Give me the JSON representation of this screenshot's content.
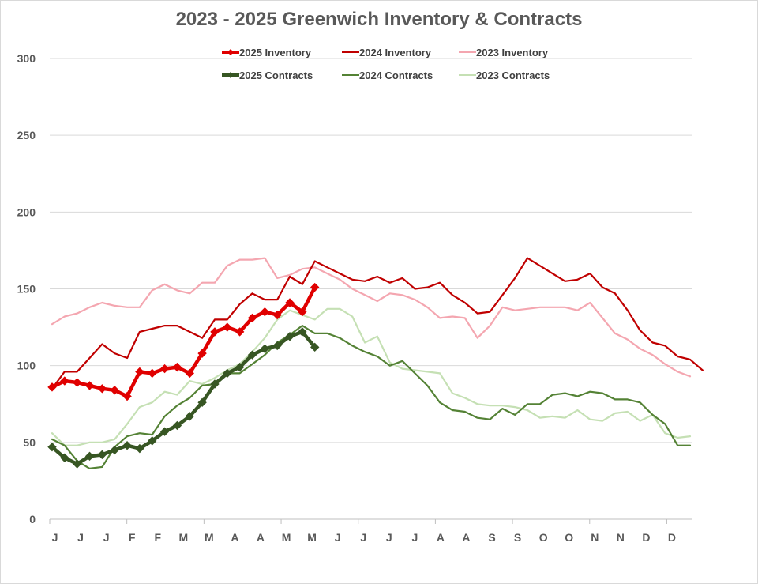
{
  "chart_data": {
    "type": "line",
    "title": "2023 - 2025 Greenwich Inventory & Contracts",
    "xlabel": "",
    "ylabel": "",
    "ylim": [
      0,
      300
    ],
    "yticks": [
      0,
      50,
      100,
      150,
      200,
      250,
      300
    ],
    "grid": true,
    "legend_position": "top",
    "month_labels": [
      "J",
      "J",
      "J",
      "F",
      "F",
      "M",
      "M",
      "A",
      "A",
      "M",
      "M",
      "J",
      "J",
      "J",
      "J",
      "A",
      "A",
      "S",
      "S",
      "O",
      "O",
      "N",
      "N",
      "D",
      "D"
    ],
    "x_points_per_year": 52,
    "series": [
      {
        "name": "2025 Inventory",
        "color": "#e00000",
        "style": "thick-diamond",
        "values": [
          86,
          90,
          89,
          87,
          85,
          84,
          80,
          96,
          95,
          98,
          99,
          95,
          108,
          122,
          125,
          122,
          131,
          135,
          133,
          141,
          135,
          151
        ]
      },
      {
        "name": "2024 Inventory",
        "color": "#c00000",
        "style": "line",
        "values": [
          85,
          96,
          96,
          105,
          114,
          108,
          105,
          122,
          124,
          126,
          126,
          122,
          118,
          130,
          130,
          140,
          147,
          143,
          143,
          158,
          153,
          168,
          164,
          160,
          156,
          155,
          158,
          154,
          157,
          150,
          151,
          154,
          146,
          141,
          134,
          135,
          146,
          157,
          170,
          165,
          160,
          155,
          156,
          160,
          151,
          147,
          136,
          123,
          115,
          113,
          106,
          104,
          97
        ]
      },
      {
        "name": "2023 Inventory",
        "color": "#f4a6b0",
        "style": "line",
        "values": [
          127,
          132,
          134,
          138,
          141,
          139,
          138,
          138,
          149,
          153,
          149,
          147,
          154,
          154,
          165,
          169,
          169,
          170,
          157,
          159,
          163,
          164,
          160,
          156,
          150,
          146,
          142,
          147,
          146,
          143,
          138,
          131,
          132,
          131,
          118,
          126,
          138,
          136,
          137,
          138,
          138,
          138,
          136,
          141,
          131,
          121,
          117,
          111,
          107,
          101,
          96,
          93
        ]
      },
      {
        "name": "2025 Contracts",
        "color": "#375623",
        "style": "thick-diamond",
        "values": [
          47,
          40,
          36,
          41,
          42,
          45,
          48,
          46,
          51,
          57,
          61,
          67,
          76,
          88,
          95,
          99,
          107,
          111,
          113,
          119,
          122,
          112
        ]
      },
      {
        "name": "2024 Contracts",
        "color": "#548235",
        "style": "line",
        "values": [
          52,
          48,
          38,
          33,
          34,
          47,
          54,
          56,
          55,
          67,
          74,
          79,
          87,
          88,
          95,
          95,
          101,
          107,
          115,
          120,
          126,
          121,
          121,
          118,
          113,
          109,
          106,
          100,
          103,
          95,
          87,
          76,
          71,
          70,
          66,
          65,
          72,
          68,
          75,
          75,
          81,
          82,
          80,
          83,
          82,
          78,
          78,
          76,
          68,
          62,
          48,
          48
        ]
      },
      {
        "name": "2023 Contracts",
        "color": "#c5e0b4",
        "style": "line",
        "values": [
          56,
          48,
          48,
          50,
          50,
          52,
          62,
          73,
          76,
          83,
          81,
          90,
          88,
          92,
          97,
          101,
          109,
          118,
          130,
          136,
          133,
          130,
          137,
          137,
          132,
          115,
          119,
          102,
          98,
          97,
          96,
          95,
          82,
          79,
          75,
          74,
          74,
          73,
          71,
          66,
          67,
          66,
          71,
          65,
          64,
          69,
          70,
          64,
          68,
          56,
          53,
          54
        ]
      }
    ]
  }
}
